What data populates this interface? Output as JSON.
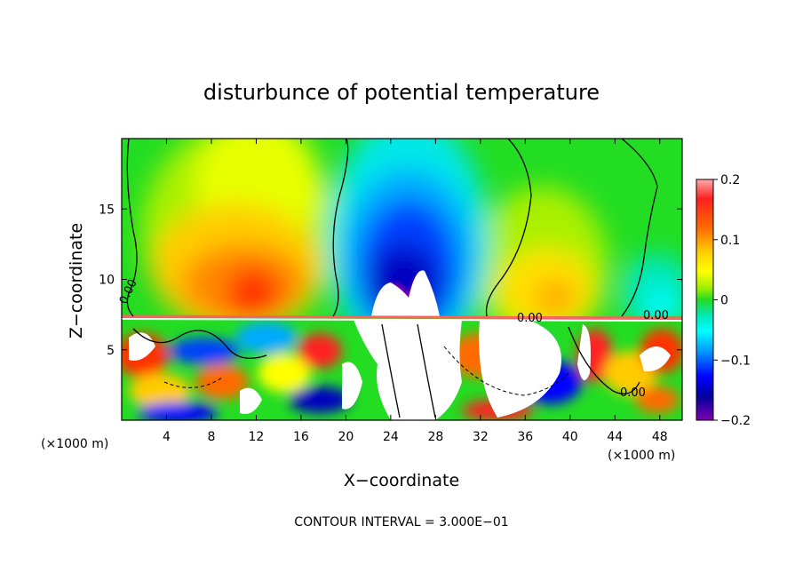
{
  "chart_data": {
    "type": "heatmap",
    "title": "disturbunce of potential temperature",
    "xlabel": "X−coordinate",
    "ylabel": "Z−coordinate",
    "x_unit_left": "(×1000 m)",
    "x_unit_right": "(×1000 m)",
    "xlim": [
      0,
      50
    ],
    "ylim": [
      0,
      20
    ],
    "xticks": [
      4,
      8,
      12,
      16,
      20,
      24,
      28,
      32,
      36,
      40,
      44,
      48
    ],
    "yticks": [
      5,
      10,
      15
    ],
    "colorbar": {
      "min": -0.2,
      "max": 0.2,
      "tick_labels": [
        "0.2",
        "0.1",
        "0",
        "−0.1",
        "−0.2"
      ],
      "tick_values": [
        0.2,
        0.1,
        0,
        -0.1,
        -0.2
      ]
    },
    "contour_labels": [
      "0.00",
      "0.00",
      "0.00",
      "0.00"
    ],
    "footnote": "CONTOUR INTERVAL = 3.000E−01",
    "grid": false,
    "anomalies": [
      {
        "name": "warm-west",
        "x": 11,
        "z": 10.5,
        "value": 0.14
      },
      {
        "name": "warm-east",
        "x": 39,
        "z": 9.5,
        "value": 0.07
      },
      {
        "name": "warm-upper",
        "x": 14,
        "z": 16,
        "value": 0.05
      },
      {
        "name": "cold-core",
        "x": 26,
        "z": 11,
        "value": -0.2
      },
      {
        "name": "cold-upper",
        "x": 25.5,
        "z": 16,
        "value": -0.08
      }
    ]
  }
}
